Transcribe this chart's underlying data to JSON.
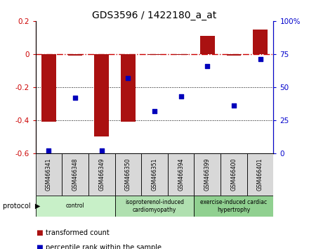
{
  "title": "GDS3596 / 1422180_a_at",
  "samples": [
    "GSM466341",
    "GSM466348",
    "GSM466349",
    "GSM466350",
    "GSM466351",
    "GSM466394",
    "GSM466399",
    "GSM466400",
    "GSM466401"
  ],
  "transformed_count": [
    -0.41,
    -0.01,
    -0.5,
    -0.41,
    -0.005,
    -0.005,
    0.11,
    -0.01,
    0.15
  ],
  "percentile_rank": [
    2,
    42,
    2,
    57,
    32,
    43,
    66,
    36,
    71
  ],
  "ylim_left": [
    -0.6,
    0.2
  ],
  "ylim_right": [
    0,
    100
  ],
  "yticks_left": [
    -0.6,
    -0.4,
    -0.2,
    0.0,
    0.2
  ],
  "yticks_right": [
    0,
    25,
    50,
    75,
    100
  ],
  "groups": [
    {
      "label": "control",
      "start": 0,
      "end": 3,
      "color": "#c8f0c8"
    },
    {
      "label": "isoproterenol-induced\ncardiomyopathy",
      "start": 3,
      "end": 6,
      "color": "#b0e0b0"
    },
    {
      "label": "exercise-induced cardiac\nhypertrophy",
      "start": 6,
      "end": 9,
      "color": "#90d090"
    }
  ],
  "bar_color": "#aa1111",
  "dot_color": "#0000bb",
  "dashdot_color": "#cc0000",
  "right_axis_color": "#0000cc",
  "left_axis_color": "#cc0000",
  "sample_box_color": "#d8d8d8",
  "legend_bar_label": "transformed count",
  "legend_dot_label": "percentile rank within the sample",
  "bar_width": 0.55
}
